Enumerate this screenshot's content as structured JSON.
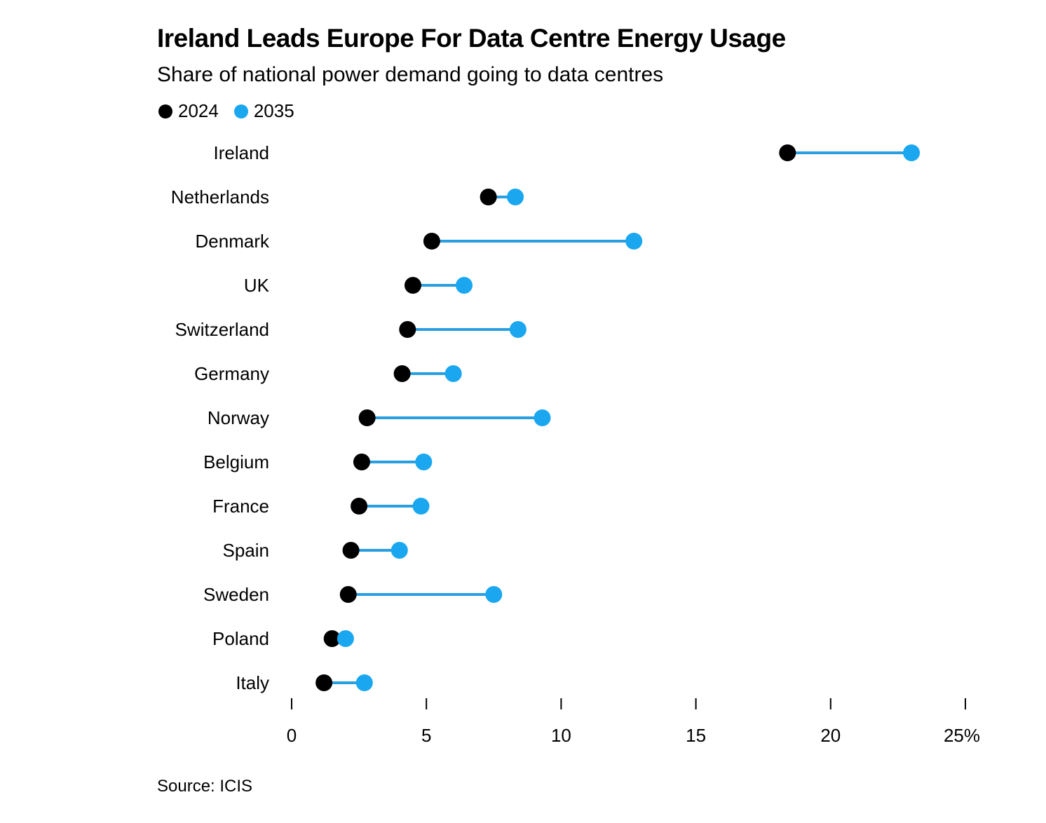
{
  "chart_data": {
    "type": "dumbbell",
    "title": "Ireland Leads Europe For Data Centre Energy Usage",
    "subtitle": "Share of national power demand going to data centres",
    "xlabel": "",
    "ylabel": "",
    "unit": "%",
    "xlim": [
      0,
      25
    ],
    "xticks": [
      0,
      5,
      10,
      15,
      20,
      25
    ],
    "xtick_labels": [
      "0",
      "5",
      "10",
      "15",
      "20",
      "25%"
    ],
    "grid": false,
    "legend_position": "top-left",
    "categories": [
      "Ireland",
      "Netherlands",
      "Denmark",
      "UK",
      "Switzerland",
      "Germany",
      "Norway",
      "Belgium",
      "France",
      "Spain",
      "Sweden",
      "Poland",
      "Italy"
    ],
    "series": [
      {
        "name": "2024",
        "color": "#000000",
        "values": [
          18.4,
          7.3,
          5.2,
          4.5,
          4.3,
          4.1,
          2.8,
          2.6,
          2.5,
          2.2,
          2.1,
          1.5,
          1.2
        ]
      },
      {
        "name": "2035",
        "color": "#1aa7f0",
        "values": [
          23.0,
          8.3,
          12.7,
          6.4,
          8.4,
          6.0,
          9.3,
          4.9,
          4.8,
          4.0,
          7.5,
          2.0,
          2.7
        ]
      }
    ],
    "connector_color": "#2a9fe0",
    "source": "Source: ICIS"
  }
}
